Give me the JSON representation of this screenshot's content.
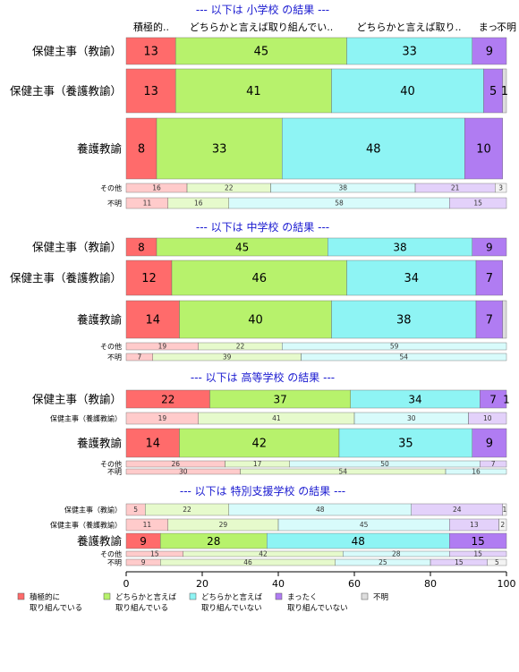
{
  "chart_data": {
    "type": "bar",
    "orientation": "horizontal",
    "stacked": true,
    "xlim": [
      0,
      100
    ],
    "x_ticks": [
      "0",
      "20",
      "40",
      "60",
      "80",
      "100"
    ],
    "colors": [
      "#FF6B6B",
      "#B7F26C",
      "#8EF4F4",
      "#B07CF2",
      "#DDDDDD"
    ],
    "column_headers": [
      "積極的..",
      "どちらかと言えば取り組んでい..",
      "どちらかと言えば取り..",
      "まっ..",
      "不明"
    ],
    "legend": [
      "積極的に\n取り組んでいる",
      "どちらかと言えば\n取り組んでいる",
      "どちらかと言えば\n取り組んでいない",
      "まったく\n取り組んでいない",
      "不明"
    ],
    "panels": [
      {
        "title": "--- 以下は 小学校 の結果 ---",
        "rows": [
          {
            "label": "保健主事（教諭）",
            "values": [
              13,
              45,
              33,
              9,
              0
            ],
            "labels": [
              "13",
              "45",
              "33",
              "9",
              ""
            ]
          },
          {
            "label": "保健主事（養護教諭）",
            "values": [
              13,
              41,
              40,
              5,
              1
            ],
            "labels": [
              "13",
              "41",
              "40",
              "5",
              "1"
            ]
          },
          {
            "label": "養護教諭",
            "values": [
              8,
              33,
              48,
              10,
              0
            ],
            "labels": [
              "8",
              "33",
              "48",
              "10",
              ""
            ]
          },
          {
            "label": "その他",
            "values": [
              16,
              22,
              38,
              21,
              3
            ],
            "labels": [
              "16",
              "22",
              "38",
              "21",
              "3"
            ]
          },
          {
            "label": "不明",
            "values": [
              11,
              16,
              58,
              15,
              0
            ],
            "labels": [
              "11",
              "16",
              "58",
              "15",
              ""
            ]
          }
        ]
      },
      {
        "title": "--- 以下は 中学校 の結果 ---",
        "rows": [
          {
            "label": "保健主事（教諭）",
            "values": [
              8,
              45,
              38,
              9,
              0
            ],
            "labels": [
              "8",
              "45",
              "38",
              "9",
              ""
            ]
          },
          {
            "label": "保健主事（養護教諭）",
            "values": [
              12,
              46,
              34,
              7,
              0
            ],
            "labels": [
              "12",
              "46",
              "34",
              "7",
              ""
            ]
          },
          {
            "label": "養護教諭",
            "values": [
              14,
              40,
              38,
              7,
              1
            ],
            "labels": [
              "14",
              "40",
              "38",
              "7",
              ""
            ]
          },
          {
            "label": "その他",
            "values": [
              19,
              22,
              59,
              0,
              0
            ],
            "labels": [
              "19",
              "22",
              "59",
              "",
              ""
            ]
          },
          {
            "label": "不明",
            "values": [
              7,
              39,
              54,
              0,
              0
            ],
            "labels": [
              "7",
              "39",
              "54",
              "",
              ""
            ]
          }
        ]
      },
      {
        "title": "--- 以下は 高等学校 の結果 ---",
        "rows": [
          {
            "label": "保健主事（教諭）",
            "values": [
              22,
              37,
              34,
              7,
              1
            ],
            "labels": [
              "22",
              "37",
              "34",
              "7",
              "1"
            ]
          },
          {
            "label": "保健主事（養護教諭）",
            "values": [
              19,
              41,
              30,
              10,
              0
            ],
            "labels": [
              "19",
              "41",
              "30",
              "10",
              ""
            ]
          },
          {
            "label": "養護教諭",
            "values": [
              14,
              42,
              35,
              9,
              0
            ],
            "labels": [
              "14",
              "42",
              "35",
              "9",
              ""
            ]
          },
          {
            "label": "その他",
            "values": [
              26,
              17,
              50,
              7,
              0
            ],
            "labels": [
              "26",
              "17",
              "50",
              "7",
              ""
            ]
          },
          {
            "label": "不明",
            "values": [
              30,
              54,
              16,
              0,
              0
            ],
            "labels": [
              "30",
              "54",
              "16",
              "",
              ""
            ]
          }
        ]
      },
      {
        "title": "--- 以下は 特別支援学校 の結果 ---",
        "rows": [
          {
            "label": "保健主事（教諭）",
            "values": [
              5,
              22,
              48,
              24,
              1
            ],
            "labels": [
              "5",
              "22",
              "48",
              "24",
              "1"
            ]
          },
          {
            "label": "保健主事（養護教諭）",
            "values": [
              11,
              29,
              45,
              13,
              2
            ],
            "labels": [
              "11",
              "29",
              "45",
              "13",
              "2"
            ]
          },
          {
            "label": "養護教諭",
            "values": [
              9,
              28,
              48,
              15,
              0
            ],
            "labels": [
              "9",
              "28",
              "48",
              "15",
              ""
            ]
          },
          {
            "label": "その他",
            "values": [
              15,
              42,
              28,
              15,
              0
            ],
            "labels": [
              "15",
              "42",
              "28",
              "15",
              ""
            ]
          },
          {
            "label": "不明",
            "values": [
              9,
              46,
              25,
              15,
              5
            ],
            "labels": [
              "9",
              "46",
              "25",
              "15",
              "5"
            ]
          }
        ]
      }
    ]
  }
}
